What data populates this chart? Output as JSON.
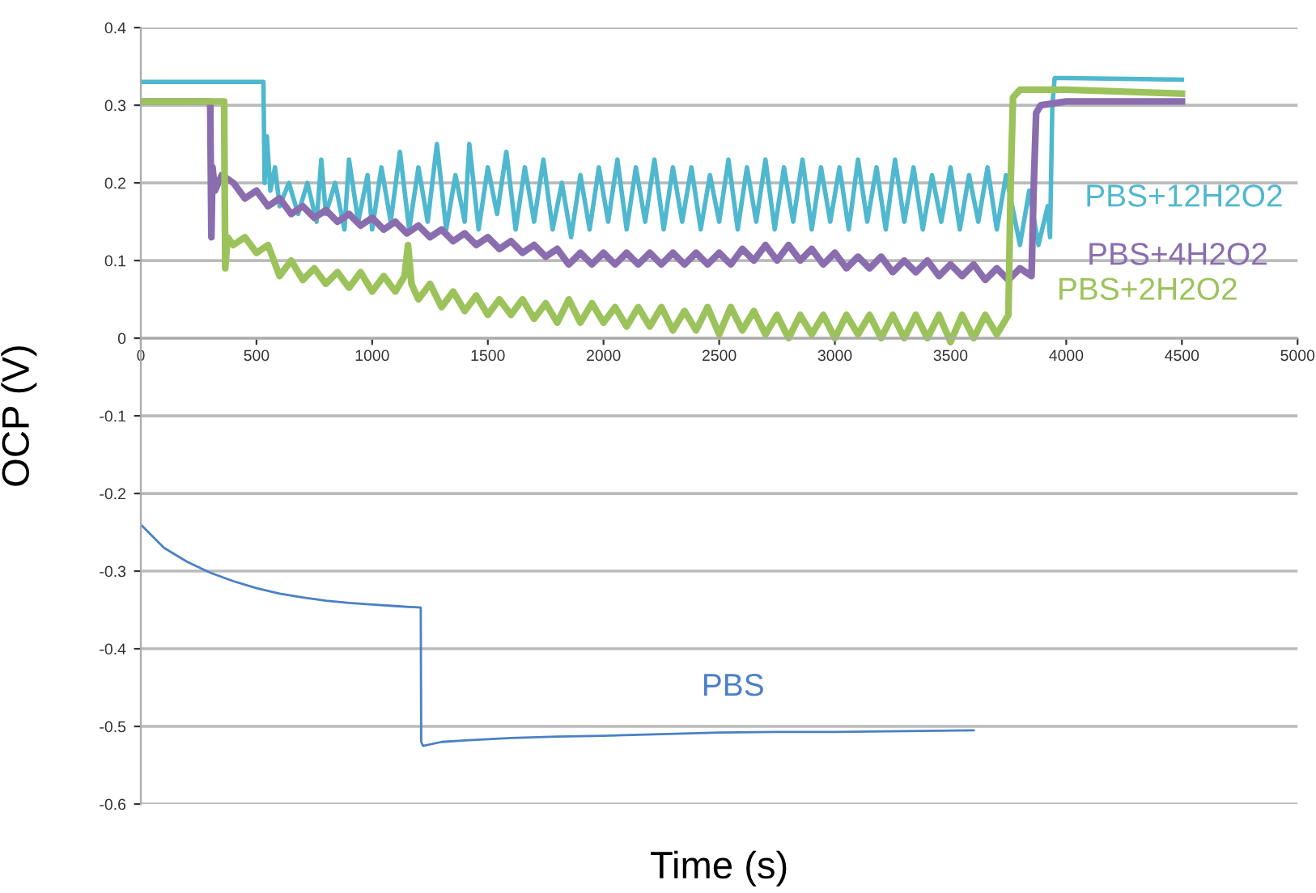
{
  "chart_data": {
    "type": "line",
    "xlabel": "Time (s)",
    "ylabel": "OCP (V)",
    "xlim": [
      0,
      5000
    ],
    "ylim": [
      -0.6,
      0.4
    ],
    "xticks": [
      0,
      500,
      1000,
      1500,
      2000,
      2500,
      3000,
      3500,
      4000,
      4500,
      5000
    ],
    "yticks": [
      -0.6,
      -0.5,
      -0.4,
      -0.3,
      -0.2,
      -0.1,
      0,
      0.1,
      0.2,
      0.3,
      0.4
    ],
    "grid": "y",
    "line_style": "solid",
    "marker": "none",
    "series": [
      {
        "name": "PBS+12H2O2",
        "color": "#4fb8cf",
        "x": [
          0,
          530,
          535,
          545,
          560,
          580,
          600,
          640,
          680,
          720,
          760,
          780,
          800,
          840,
          880,
          900,
          940,
          980,
          1000,
          1040,
          1080,
          1120,
          1160,
          1200,
          1240,
          1280,
          1320,
          1360,
          1400,
          1420,
          1460,
          1500,
          1540,
          1580,
          1620,
          1660,
          1700,
          1740,
          1780,
          1820,
          1860,
          1900,
          1940,
          1980,
          2020,
          2060,
          2100,
          2140,
          2180,
          2220,
          2260,
          2300,
          2340,
          2380,
          2420,
          2460,
          2500,
          2540,
          2580,
          2620,
          2660,
          2700,
          2740,
          2780,
          2820,
          2860,
          2900,
          2940,
          2980,
          3020,
          3060,
          3100,
          3140,
          3180,
          3220,
          3260,
          3300,
          3340,
          3380,
          3420,
          3460,
          3500,
          3540,
          3580,
          3620,
          3660,
          3700,
          3740,
          3780,
          3800,
          3840,
          3880,
          3920,
          3930,
          3940,
          3950,
          4000,
          4500
        ],
        "values": [
          0.33,
          0.33,
          0.2,
          0.26,
          0.19,
          0.22,
          0.17,
          0.2,
          0.16,
          0.2,
          0.15,
          0.23,
          0.16,
          0.2,
          0.14,
          0.23,
          0.15,
          0.21,
          0.14,
          0.22,
          0.15,
          0.24,
          0.14,
          0.22,
          0.15,
          0.25,
          0.14,
          0.21,
          0.15,
          0.25,
          0.14,
          0.22,
          0.16,
          0.24,
          0.14,
          0.22,
          0.15,
          0.23,
          0.14,
          0.2,
          0.13,
          0.21,
          0.14,
          0.22,
          0.15,
          0.23,
          0.14,
          0.22,
          0.15,
          0.23,
          0.14,
          0.22,
          0.15,
          0.22,
          0.14,
          0.21,
          0.15,
          0.23,
          0.14,
          0.22,
          0.15,
          0.23,
          0.14,
          0.22,
          0.15,
          0.23,
          0.14,
          0.22,
          0.15,
          0.22,
          0.14,
          0.23,
          0.15,
          0.22,
          0.14,
          0.23,
          0.15,
          0.22,
          0.14,
          0.21,
          0.15,
          0.22,
          0.14,
          0.21,
          0.15,
          0.22,
          0.14,
          0.21,
          0.15,
          0.12,
          0.19,
          0.12,
          0.17,
          0.13,
          0.3,
          0.335,
          0.335,
          0.333
        ]
      },
      {
        "name": "PBS+4H2O2",
        "color": "#8a6daf",
        "x": [
          0,
          300,
          305,
          310,
          320,
          350,
          400,
          450,
          500,
          550,
          600,
          650,
          700,
          750,
          800,
          850,
          900,
          950,
          1000,
          1050,
          1100,
          1150,
          1200,
          1250,
          1300,
          1350,
          1400,
          1450,
          1500,
          1550,
          1600,
          1650,
          1700,
          1750,
          1800,
          1850,
          1900,
          1950,
          2000,
          2050,
          2100,
          2150,
          2200,
          2250,
          2300,
          2350,
          2400,
          2450,
          2500,
          2550,
          2600,
          2650,
          2700,
          2750,
          2800,
          2850,
          2900,
          2950,
          3000,
          3050,
          3100,
          3150,
          3200,
          3250,
          3300,
          3350,
          3400,
          3450,
          3500,
          3550,
          3600,
          3650,
          3700,
          3750,
          3800,
          3850,
          3860,
          3870,
          3890,
          4000,
          4500
        ],
        "values": [
          0.305,
          0.305,
          0.13,
          0.22,
          0.19,
          0.21,
          0.2,
          0.18,
          0.19,
          0.17,
          0.18,
          0.16,
          0.17,
          0.155,
          0.165,
          0.15,
          0.16,
          0.145,
          0.155,
          0.14,
          0.15,
          0.135,
          0.145,
          0.13,
          0.14,
          0.125,
          0.135,
          0.12,
          0.13,
          0.115,
          0.125,
          0.11,
          0.12,
          0.105,
          0.115,
          0.095,
          0.11,
          0.095,
          0.11,
          0.095,
          0.11,
          0.095,
          0.11,
          0.095,
          0.11,
          0.095,
          0.11,
          0.095,
          0.11,
          0.095,
          0.115,
          0.1,
          0.12,
          0.1,
          0.12,
          0.1,
          0.115,
          0.095,
          0.11,
          0.09,
          0.105,
          0.09,
          0.105,
          0.085,
          0.1,
          0.085,
          0.1,
          0.08,
          0.095,
          0.08,
          0.095,
          0.075,
          0.09,
          0.075,
          0.09,
          0.08,
          0.2,
          0.29,
          0.3,
          0.305,
          0.305
        ]
      },
      {
        "name": "PBS+2H2O2",
        "color": "#9cc35b",
        "x": [
          0,
          360,
          365,
          375,
          400,
          450,
          500,
          550,
          600,
          650,
          700,
          750,
          800,
          850,
          900,
          950,
          1000,
          1050,
          1100,
          1140,
          1155,
          1170,
          1200,
          1250,
          1300,
          1350,
          1400,
          1450,
          1500,
          1550,
          1600,
          1650,
          1700,
          1750,
          1800,
          1850,
          1900,
          1950,
          2000,
          2050,
          2100,
          2150,
          2200,
          2250,
          2300,
          2350,
          2400,
          2450,
          2500,
          2550,
          2600,
          2650,
          2700,
          2750,
          2800,
          2850,
          2900,
          2950,
          3000,
          3050,
          3100,
          3150,
          3200,
          3250,
          3300,
          3350,
          3400,
          3450,
          3500,
          3550,
          3600,
          3650,
          3700,
          3750,
          3760,
          3770,
          3800,
          4000,
          4500
        ],
        "values": [
          0.305,
          0.305,
          0.09,
          0.13,
          0.12,
          0.13,
          0.11,
          0.12,
          0.08,
          0.1,
          0.075,
          0.09,
          0.07,
          0.085,
          0.065,
          0.085,
          0.06,
          0.08,
          0.06,
          0.08,
          0.12,
          0.07,
          0.05,
          0.07,
          0.04,
          0.06,
          0.035,
          0.055,
          0.03,
          0.05,
          0.03,
          0.05,
          0.025,
          0.045,
          0.02,
          0.05,
          0.02,
          0.045,
          0.02,
          0.04,
          0.015,
          0.04,
          0.015,
          0.04,
          0.01,
          0.035,
          0.01,
          0.04,
          0.005,
          0.04,
          0.01,
          0.035,
          0.005,
          0.03,
          0.0,
          0.03,
          0.005,
          0.03,
          0.0,
          0.03,
          0.005,
          0.03,
          0.0,
          0.03,
          0.0,
          0.03,
          0.0,
          0.03,
          -0.005,
          0.03,
          0.0,
          0.03,
          0.005,
          0.03,
          0.2,
          0.31,
          0.32,
          0.32,
          0.315
        ]
      },
      {
        "name": "PBS",
        "color": "#4a80c4",
        "x": [
          0,
          100,
          200,
          300,
          400,
          500,
          600,
          700,
          800,
          900,
          1000,
          1100,
          1210,
          1212,
          1220,
          1300,
          1400,
          1600,
          1800,
          2000,
          2250,
          2500,
          2750,
          3000,
          3300,
          3600
        ],
        "values": [
          -0.24,
          -0.27,
          -0.288,
          -0.302,
          -0.313,
          -0.322,
          -0.329,
          -0.334,
          -0.338,
          -0.341,
          -0.343,
          -0.345,
          -0.347,
          -0.52,
          -0.525,
          -0.52,
          -0.518,
          -0.515,
          -0.513,
          -0.512,
          -0.51,
          -0.508,
          -0.507,
          -0.507,
          -0.506,
          -0.505
        ]
      }
    ]
  }
}
